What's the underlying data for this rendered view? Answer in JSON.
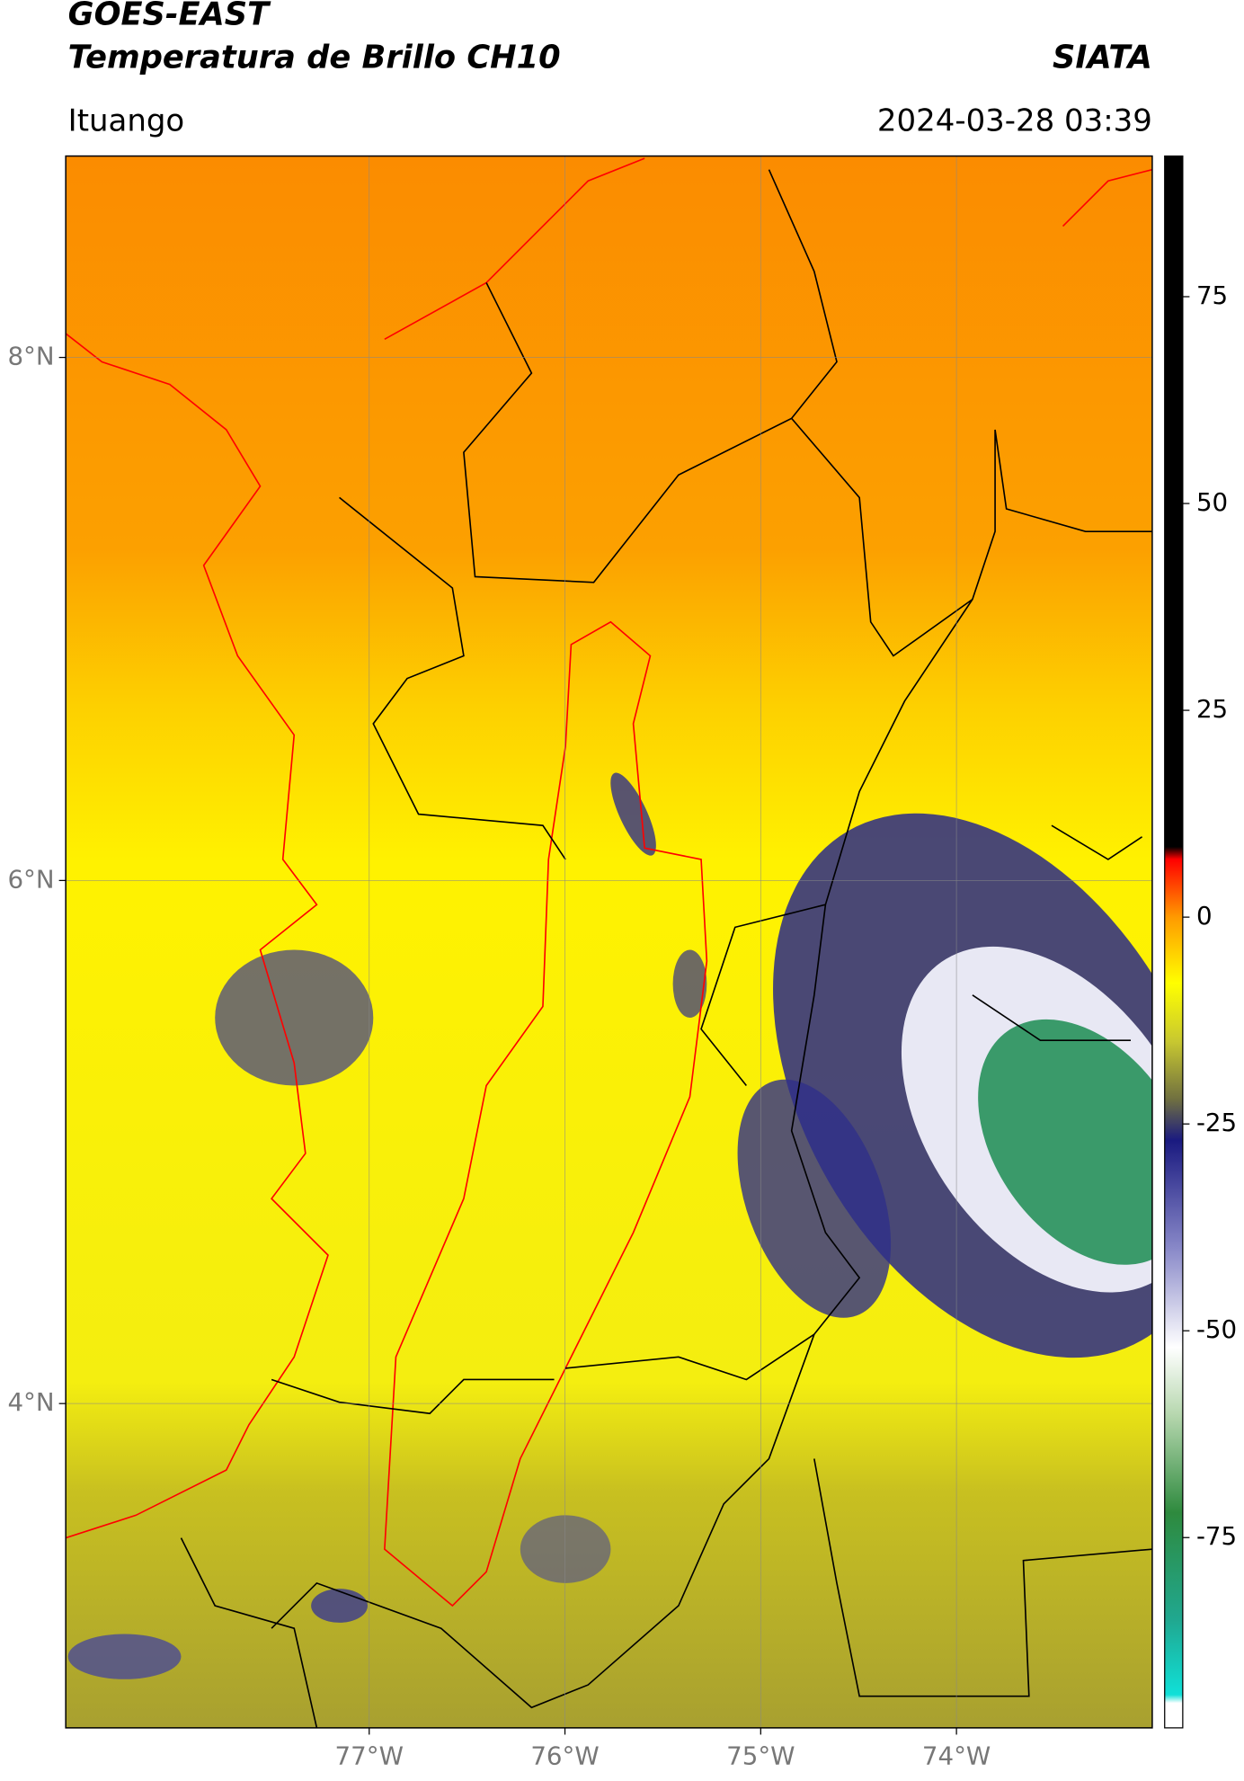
{
  "header": {
    "title": "GOES-EAST",
    "subtitle": "Temperatura de Brillo CH10",
    "source": "SIATA",
    "location": "Ituango",
    "datetime": "2024-03-28 03:39"
  },
  "map": {
    "type": "map",
    "xlim": [
      -78.55,
      -73.0
    ],
    "ylim": [
      2.76,
      8.77
    ],
    "grid": true,
    "xticks": [
      {
        "value": -77,
        "label": "77°W"
      },
      {
        "value": -76,
        "label": "76°W"
      },
      {
        "value": -75,
        "label": "75°W"
      },
      {
        "value": -74,
        "label": "74°W"
      }
    ],
    "yticks": [
      {
        "value": 8,
        "label": "8°N"
      },
      {
        "value": 6,
        "label": "6°N"
      },
      {
        "value": 4,
        "label": "4°N"
      }
    ]
  },
  "colorbar": {
    "lim": [
      -98,
      92
    ],
    "ticks": [
      75,
      50,
      25,
      0,
      -25,
      -50,
      -75
    ],
    "colors": [
      [
        -98,
        "#ffffff"
      ],
      [
        -95,
        "#ffffff"
      ],
      [
        -94,
        "#10e0d8"
      ],
      [
        -85,
        "#20a890"
      ],
      [
        -72,
        "#2e8a3e"
      ],
      [
        -60,
        "#b8d8b0"
      ],
      [
        -52,
        "#ffffff"
      ],
      [
        -40,
        "#8888c8"
      ],
      [
        -27,
        "#1a1a80"
      ],
      [
        -22,
        "#707040"
      ],
      [
        -15,
        "#c8c830"
      ],
      [
        -8,
        "#ffff00"
      ],
      [
        0,
        "#ff9a00"
      ],
      [
        7,
        "#ff0000"
      ],
      [
        8.5,
        "#000000"
      ],
      [
        92,
        "#000000"
      ]
    ]
  }
}
